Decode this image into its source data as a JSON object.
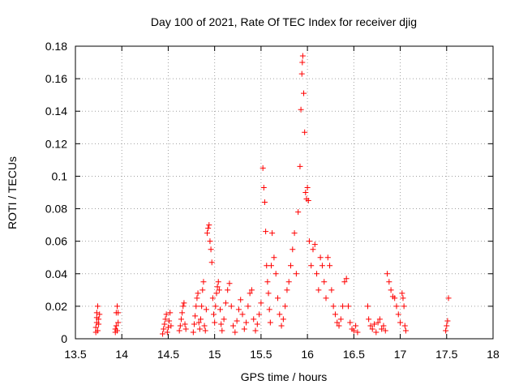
{
  "chart_data": {
    "type": "scatter",
    "title": "Day 100 of 2021, Rate Of TEC Index for receiver djig",
    "xlabel": "GPS time / hours",
    "ylabel": "ROTI / TECUs",
    "xlim": [
      13.5,
      18
    ],
    "ylim": [
      0,
      0.18
    ],
    "xticks": [
      "13.5",
      "14",
      "14.5",
      "15",
      "15.5",
      "16",
      "16.5",
      "17",
      "17.5",
      "18"
    ],
    "yticks": [
      "0",
      "0.02",
      "0.04",
      "0.06",
      "0.08",
      "0.1",
      "0.12",
      "0.14",
      "0.16",
      "0.18"
    ],
    "grid": true,
    "marker": "plus",
    "series": [
      {
        "name": "ROTI",
        "color": "#ff0000",
        "points": [
          [
            13.72,
            0.004
          ],
          [
            13.72,
            0.007
          ],
          [
            13.73,
            0.01
          ],
          [
            13.73,
            0.013
          ],
          [
            13.73,
            0.016
          ],
          [
            13.74,
            0.02
          ],
          [
            13.74,
            0.005
          ],
          [
            13.75,
            0.009
          ],
          [
            13.75,
            0.012
          ],
          [
            13.76,
            0.015
          ],
          [
            13.93,
            0.004
          ],
          [
            13.93,
            0.006
          ],
          [
            13.94,
            0.008
          ],
          [
            13.94,
            0.016
          ],
          [
            13.95,
            0.02
          ],
          [
            13.95,
            0.005
          ],
          [
            13.96,
            0.01
          ],
          [
            13.96,
            0.016
          ],
          [
            14.44,
            0.003
          ],
          [
            14.45,
            0.006
          ],
          [
            14.46,
            0.009
          ],
          [
            14.47,
            0.012
          ],
          [
            14.48,
            0.015
          ],
          [
            14.49,
            0.004
          ],
          [
            14.5,
            0.007
          ],
          [
            14.51,
            0.011
          ],
          [
            14.52,
            0.016
          ],
          [
            14.53,
            0.008
          ],
          [
            14.62,
            0.005
          ],
          [
            14.63,
            0.008
          ],
          [
            14.64,
            0.012
          ],
          [
            14.65,
            0.016
          ],
          [
            14.66,
            0.02
          ],
          [
            14.67,
            0.022
          ],
          [
            14.68,
            0.009
          ],
          [
            14.69,
            0.006
          ],
          [
            14.77,
            0.004
          ],
          [
            14.78,
            0.009
          ],
          [
            14.79,
            0.014
          ],
          [
            14.8,
            0.02
          ],
          [
            14.81,
            0.025
          ],
          [
            14.82,
            0.028
          ],
          [
            14.83,
            0.01
          ],
          [
            14.84,
            0.006
          ],
          [
            14.85,
            0.012
          ],
          [
            14.86,
            0.02
          ],
          [
            14.87,
            0.03
          ],
          [
            14.88,
            0.035
          ],
          [
            14.89,
            0.008
          ],
          [
            14.9,
            0.005
          ],
          [
            14.91,
            0.018
          ],
          [
            14.92,
            0.065
          ],
          [
            14.93,
            0.068
          ],
          [
            14.94,
            0.07
          ],
          [
            14.95,
            0.06
          ],
          [
            14.96,
            0.055
          ],
          [
            14.97,
            0.047
          ],
          [
            14.98,
            0.025
          ],
          [
            14.99,
            0.015
          ],
          [
            15.0,
            0.01
          ],
          [
            15.01,
            0.02
          ],
          [
            15.02,
            0.028
          ],
          [
            15.03,
            0.032
          ],
          [
            15.04,
            0.035
          ],
          [
            15.05,
            0.03
          ],
          [
            15.06,
            0.018
          ],
          [
            15.07,
            0.009
          ],
          [
            15.08,
            0.005
          ],
          [
            15.1,
            0.012
          ],
          [
            15.12,
            0.022
          ],
          [
            15.14,
            0.03
          ],
          [
            15.16,
            0.034
          ],
          [
            15.18,
            0.02
          ],
          [
            15.2,
            0.008
          ],
          [
            15.22,
            0.004
          ],
          [
            15.24,
            0.011
          ],
          [
            15.26,
            0.018
          ],
          [
            15.28,
            0.024
          ],
          [
            15.3,
            0.015
          ],
          [
            15.32,
            0.006
          ],
          [
            15.34,
            0.01
          ],
          [
            15.36,
            0.02
          ],
          [
            15.38,
            0.028
          ],
          [
            15.4,
            0.03
          ],
          [
            15.42,
            0.012
          ],
          [
            15.44,
            0.005
          ],
          [
            15.46,
            0.009
          ],
          [
            15.48,
            0.015
          ],
          [
            15.5,
            0.022
          ],
          [
            15.52,
            0.105
          ],
          [
            15.53,
            0.093
          ],
          [
            15.54,
            0.084
          ],
          [
            15.55,
            0.066
          ],
          [
            15.56,
            0.045
          ],
          [
            15.57,
            0.035
          ],
          [
            15.58,
            0.028
          ],
          [
            15.59,
            0.018
          ],
          [
            15.6,
            0.01
          ],
          [
            15.61,
            0.045
          ],
          [
            15.62,
            0.065
          ],
          [
            15.64,
            0.05
          ],
          [
            15.66,
            0.04
          ],
          [
            15.68,
            0.025
          ],
          [
            15.7,
            0.015
          ],
          [
            15.72,
            0.008
          ],
          [
            15.74,
            0.012
          ],
          [
            15.76,
            0.02
          ],
          [
            15.78,
            0.03
          ],
          [
            15.8,
            0.035
          ],
          [
            15.82,
            0.045
          ],
          [
            15.84,
            0.055
          ],
          [
            15.86,
            0.065
          ],
          [
            15.88,
            0.04
          ],
          [
            15.9,
            0.078
          ],
          [
            15.92,
            0.106
          ],
          [
            15.93,
            0.141
          ],
          [
            15.94,
            0.163
          ],
          [
            15.945,
            0.17
          ],
          [
            15.95,
            0.174
          ],
          [
            15.96,
            0.151
          ],
          [
            15.97,
            0.127
          ],
          [
            15.98,
            0.09
          ],
          [
            15.99,
            0.086
          ],
          [
            16.0,
            0.093
          ],
          [
            16.01,
            0.085
          ],
          [
            16.02,
            0.06
          ],
          [
            16.04,
            0.045
          ],
          [
            16.06,
            0.055
          ],
          [
            16.08,
            0.058
          ],
          [
            16.1,
            0.04
          ],
          [
            16.12,
            0.03
          ],
          [
            16.14,
            0.05
          ],
          [
            16.16,
            0.045
          ],
          [
            16.18,
            0.035
          ],
          [
            16.2,
            0.025
          ],
          [
            16.22,
            0.05
          ],
          [
            16.24,
            0.045
          ],
          [
            16.26,
            0.03
          ],
          [
            16.28,
            0.02
          ],
          [
            16.3,
            0.015
          ],
          [
            16.32,
            0.01
          ],
          [
            16.34,
            0.008
          ],
          [
            16.36,
            0.012
          ],
          [
            16.38,
            0.02
          ],
          [
            16.4,
            0.035
          ],
          [
            16.42,
            0.037
          ],
          [
            16.44,
            0.02
          ],
          [
            16.46,
            0.01
          ],
          [
            16.48,
            0.006
          ],
          [
            16.5,
            0.005
          ],
          [
            16.52,
            0.008
          ],
          [
            16.54,
            0.004
          ],
          [
            16.65,
            0.02
          ],
          [
            16.66,
            0.012
          ],
          [
            16.68,
            0.008
          ],
          [
            16.7,
            0.006
          ],
          [
            16.72,
            0.009
          ],
          [
            16.74,
            0.004
          ],
          [
            16.76,
            0.01
          ],
          [
            16.78,
            0.012
          ],
          [
            16.8,
            0.006
          ],
          [
            16.82,
            0.008
          ],
          [
            16.84,
            0.005
          ],
          [
            16.86,
            0.04
          ],
          [
            16.88,
            0.035
          ],
          [
            16.9,
            0.03
          ],
          [
            16.92,
            0.026
          ],
          [
            16.94,
            0.025
          ],
          [
            16.96,
            0.02
          ],
          [
            16.98,
            0.015
          ],
          [
            17.0,
            0.01
          ],
          [
            17.02,
            0.028
          ],
          [
            17.03,
            0.025
          ],
          [
            17.04,
            0.02
          ],
          [
            17.05,
            0.008
          ],
          [
            17.06,
            0.005
          ],
          [
            17.49,
            0.005
          ],
          [
            17.5,
            0.008
          ],
          [
            17.51,
            0.011
          ],
          [
            17.52,
            0.025
          ]
        ]
      }
    ]
  }
}
